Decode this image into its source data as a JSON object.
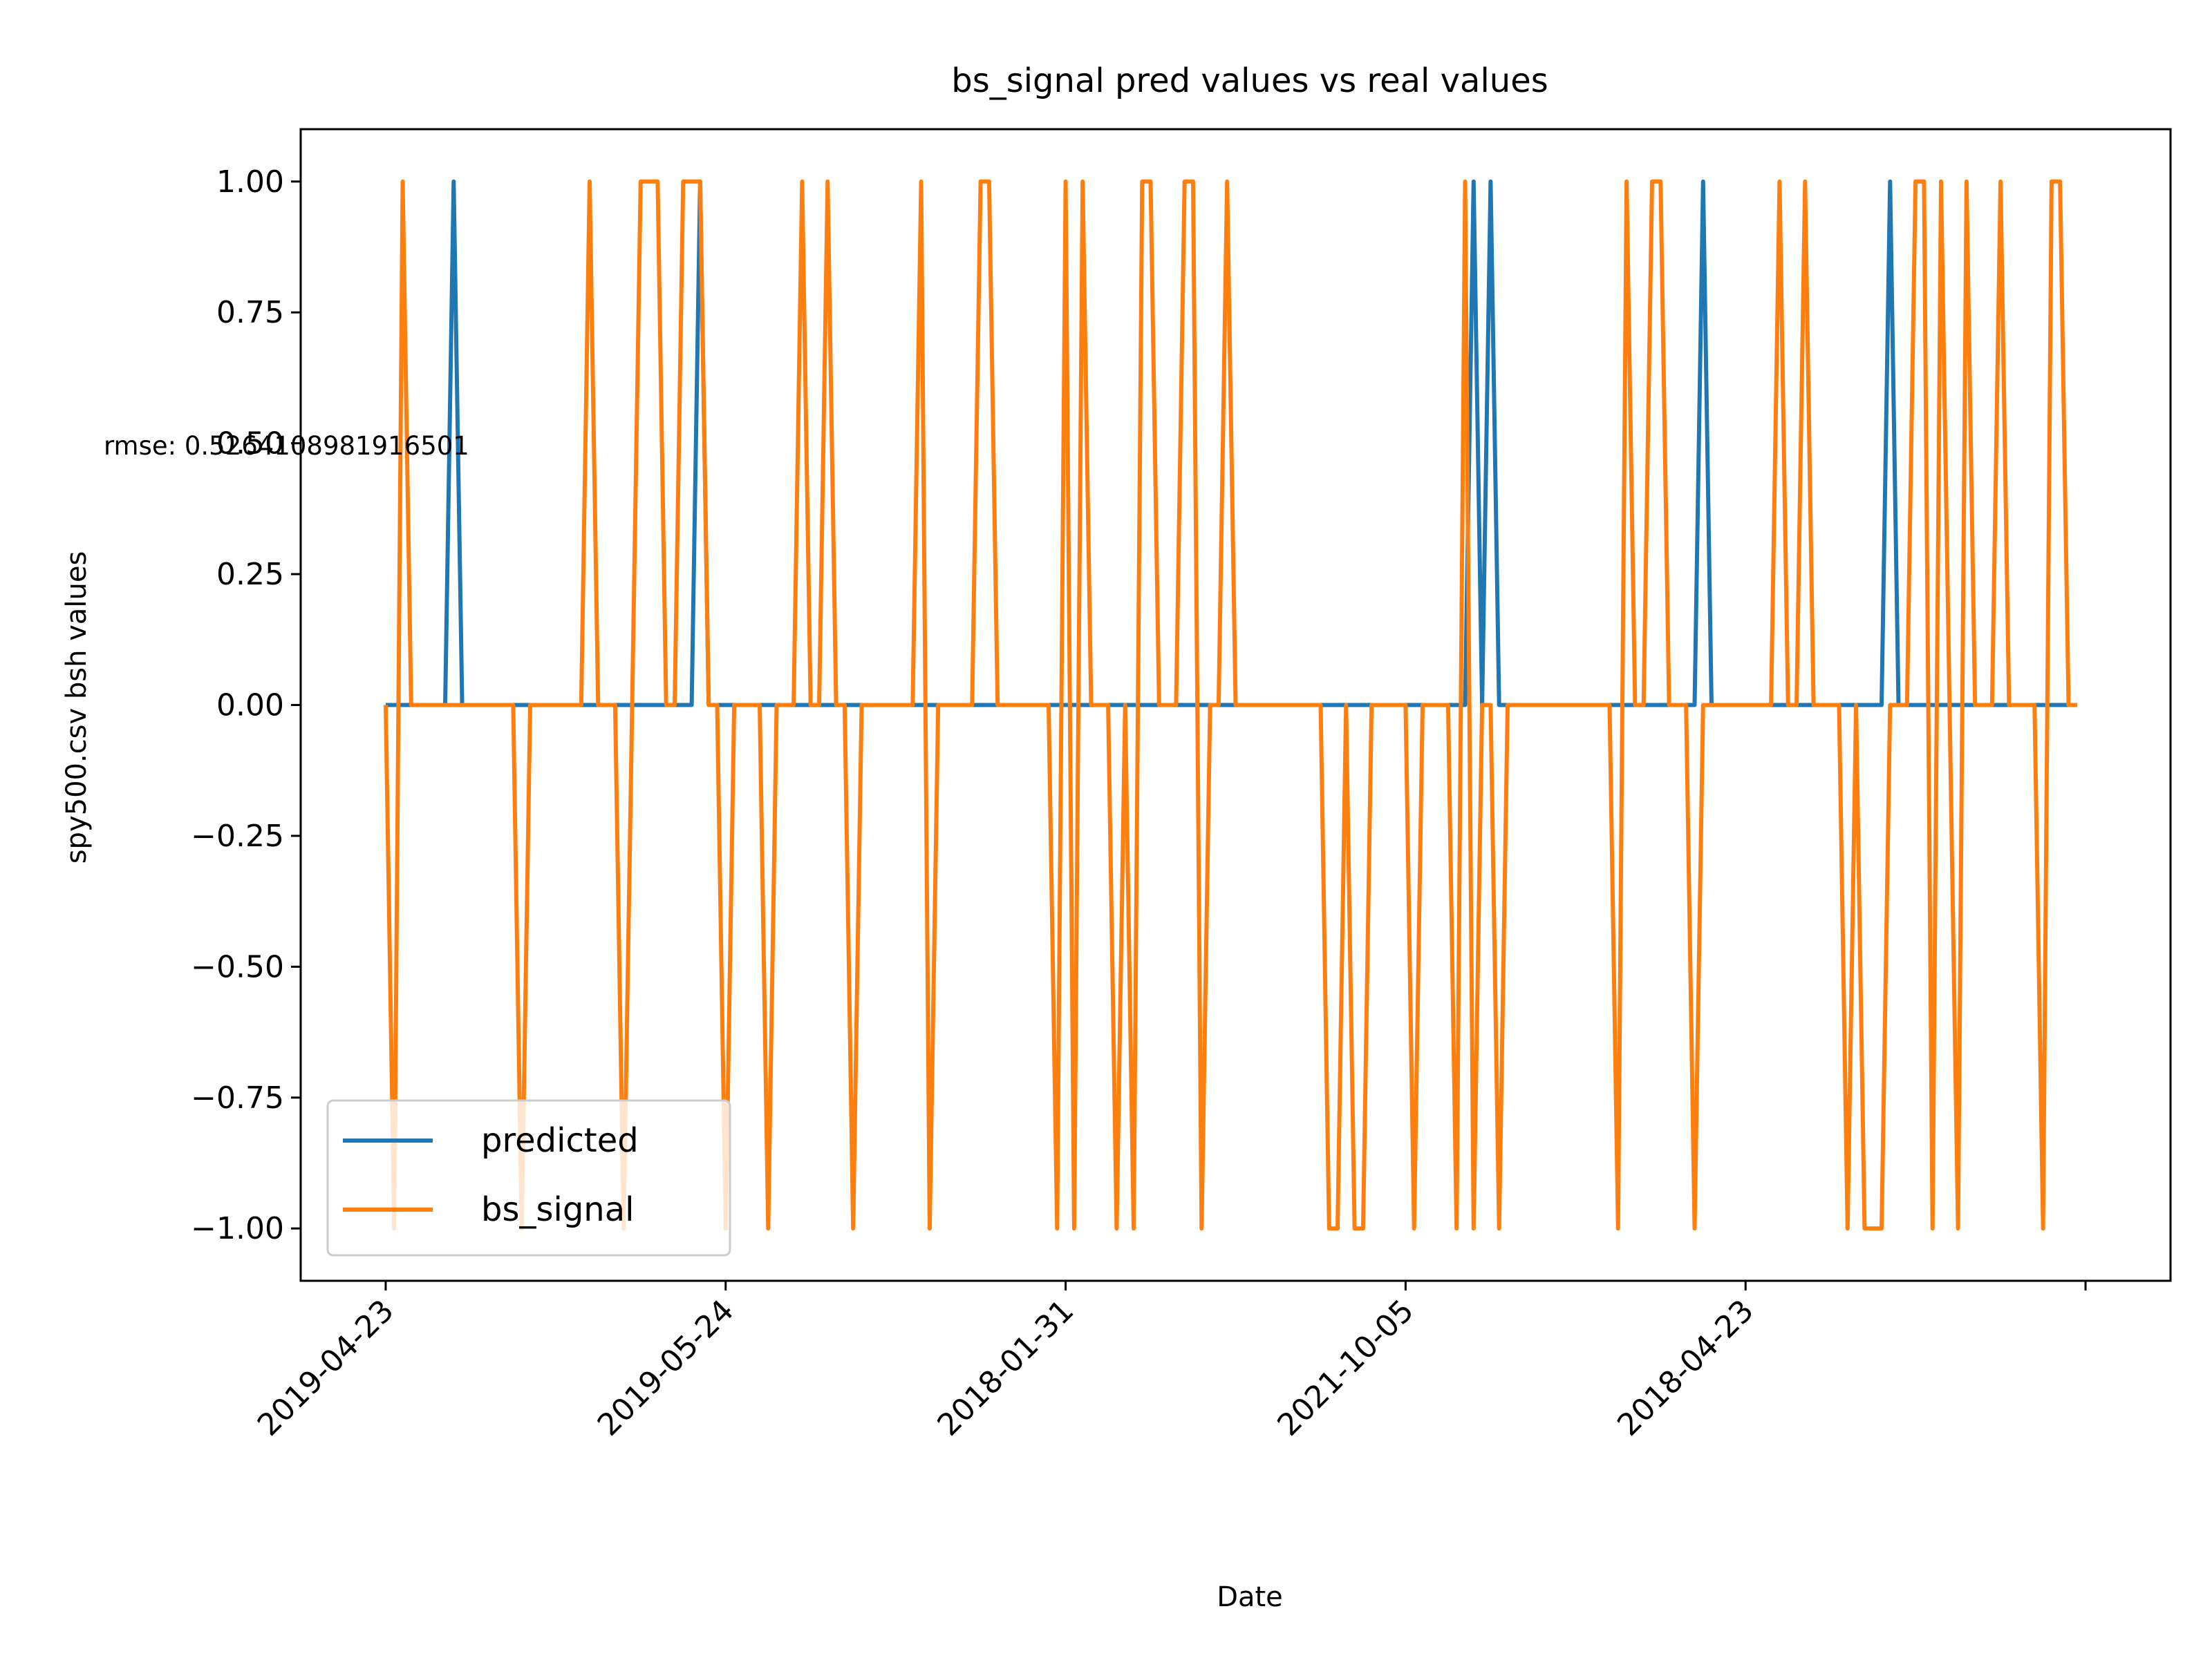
{
  "chart_data": {
    "type": "line",
    "title": "bs_signal pred values vs real values",
    "xlabel": "Date",
    "ylabel": "spy500.csv bsh values",
    "annotation": "rmse: 0.5264108981916501",
    "ylim": [
      -1.1,
      1.1
    ],
    "y_ticks": [
      1.0,
      0.75,
      0.5,
      0.25,
      0.0,
      -0.25,
      -0.5,
      -0.75,
      -1.0
    ],
    "y_tick_labels": [
      "1.00",
      "0.75",
      "0.50",
      "0.25",
      "0.00",
      "−0.25",
      "−0.50",
      "−0.75",
      "−1.00"
    ],
    "x_tick_labels": [
      "2019-04-23",
      "2019-05-24",
      "2018-01-31",
      "2021-10-05",
      "2018-04-23",
      ""
    ],
    "x_tick_index": [
      0,
      40,
      80,
      120,
      160,
      200
    ],
    "xlim": [
      -10,
      210
    ],
    "legend_position": "lower left",
    "grid": false,
    "colors": {
      "predicted": "#1f77b4",
      "bs_signal": "#ff7f0e"
    },
    "n_points": 200,
    "series": [
      {
        "name": "predicted",
        "color": "#1f77b4",
        "events": [
          [
            8,
            1
          ],
          [
            37,
            1
          ],
          [
            128,
            1
          ],
          [
            130,
            1
          ],
          [
            155,
            1
          ],
          [
            177,
            1
          ]
        ]
      },
      {
        "name": "bs_signal",
        "color": "#ff7f0e",
        "events": [
          [
            1,
            -1
          ],
          [
            2,
            1
          ],
          [
            16,
            -1
          ],
          [
            24,
            1
          ],
          [
            28,
            -1
          ],
          [
            30,
            1
          ],
          [
            31,
            1
          ],
          [
            32,
            1
          ],
          [
            35,
            1
          ],
          [
            36,
            1
          ],
          [
            37,
            1
          ],
          [
            40,
            -1
          ],
          [
            45,
            -1
          ],
          [
            49,
            1
          ],
          [
            52,
            1
          ],
          [
            55,
            -1
          ],
          [
            63,
            1
          ],
          [
            64,
            -1
          ],
          [
            70,
            1
          ],
          [
            71,
            1
          ],
          [
            79,
            -1
          ],
          [
            80,
            1
          ],
          [
            81,
            -1
          ],
          [
            82,
            1
          ],
          [
            86,
            -1
          ],
          [
            88,
            -1
          ],
          [
            89,
            1
          ],
          [
            90,
            1
          ],
          [
            94,
            1
          ],
          [
            95,
            1
          ],
          [
            96,
            -1
          ],
          [
            99,
            1
          ],
          [
            111,
            -1
          ],
          [
            112,
            -1
          ],
          [
            114,
            -1
          ],
          [
            115,
            -1
          ],
          [
            121,
            -1
          ],
          [
            126,
            -1
          ],
          [
            127,
            1
          ],
          [
            128,
            -1
          ],
          [
            131,
            -1
          ],
          [
            145,
            -1
          ],
          [
            146,
            1
          ],
          [
            149,
            1
          ],
          [
            150,
            1
          ],
          [
            154,
            -1
          ],
          [
            164,
            1
          ],
          [
            167,
            1
          ],
          [
            172,
            -1
          ],
          [
            174,
            -1
          ],
          [
            175,
            -1
          ],
          [
            176,
            -1
          ],
          [
            180,
            1
          ],
          [
            181,
            1
          ],
          [
            182,
            -1
          ],
          [
            183,
            1
          ],
          [
            185,
            -1
          ],
          [
            186,
            1
          ],
          [
            190,
            1
          ],
          [
            195,
            -1
          ],
          [
            196,
            1
          ],
          [
            197,
            1
          ]
        ]
      }
    ]
  }
}
